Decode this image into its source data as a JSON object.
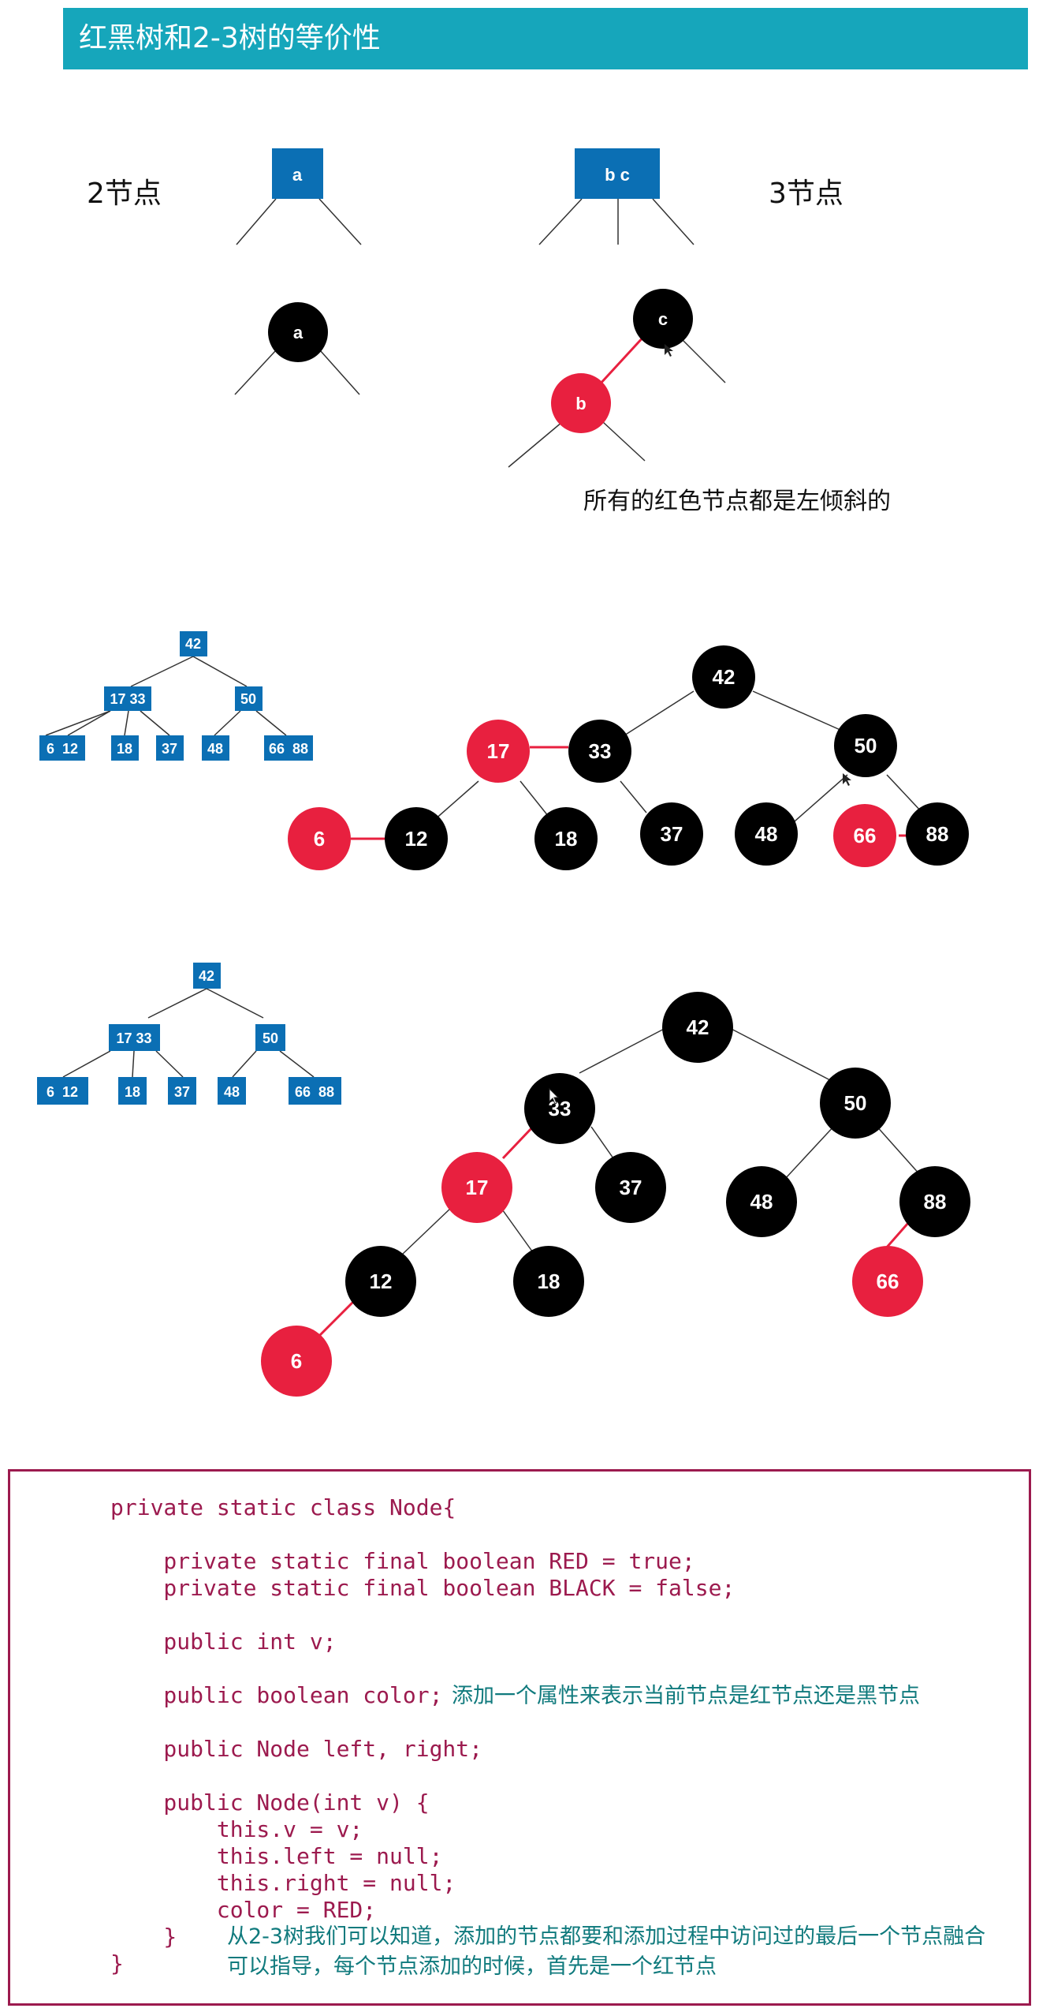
{
  "header": {
    "title": "红黑树和2-3树的等价性"
  },
  "section1": {
    "two_node_label": "2节点",
    "three_node_label": "3节点",
    "two_node": {
      "key": "a"
    },
    "three_node": {
      "keys": "b c"
    },
    "rb_two": {
      "key": "a"
    },
    "rb_three": {
      "black": "c",
      "red": "b"
    },
    "caption": "所有的红色节点都是左倾斜的"
  },
  "tree1": {
    "boxes": {
      "root": "42",
      "left": "17 33",
      "right": "50",
      "leaves": [
        "6  12",
        "18",
        "37",
        "48",
        "66  88"
      ]
    },
    "nodes": [
      {
        "id": "n42",
        "label": "42",
        "color": "black"
      },
      {
        "id": "n17",
        "label": "17",
        "color": "red"
      },
      {
        "id": "n33",
        "label": "33",
        "color": "black"
      },
      {
        "id": "n50",
        "label": "50",
        "color": "black"
      },
      {
        "id": "n6",
        "label": "6",
        "color": "red"
      },
      {
        "id": "n12",
        "label": "12",
        "color": "black"
      },
      {
        "id": "n18",
        "label": "18",
        "color": "black"
      },
      {
        "id": "n37",
        "label": "37",
        "color": "black"
      },
      {
        "id": "n48",
        "label": "48",
        "color": "black"
      },
      {
        "id": "n66",
        "label": "66",
        "color": "red"
      },
      {
        "id": "n88",
        "label": "88",
        "color": "black"
      }
    ]
  },
  "tree2": {
    "boxes": {
      "root": "42",
      "left": "17 33",
      "right": "50",
      "leaves": [
        "6  12",
        "18",
        "37",
        "48",
        "66  88"
      ]
    },
    "nodes": [
      {
        "id": "m42",
        "label": "42",
        "color": "black"
      },
      {
        "id": "m33",
        "label": "33",
        "color": "black"
      },
      {
        "id": "m50",
        "label": "50",
        "color": "black"
      },
      {
        "id": "m17",
        "label": "17",
        "color": "red"
      },
      {
        "id": "m37",
        "label": "37",
        "color": "black"
      },
      {
        "id": "m48",
        "label": "48",
        "color": "black"
      },
      {
        "id": "m88",
        "label": "88",
        "color": "black"
      },
      {
        "id": "m12",
        "label": "12",
        "color": "black"
      },
      {
        "id": "m18",
        "label": "18",
        "color": "black"
      },
      {
        "id": "m66",
        "label": "66",
        "color": "red"
      },
      {
        "id": "m6",
        "label": "6",
        "color": "red"
      }
    ]
  },
  "colors": {
    "header": "#16a6bb",
    "box": "#0b6fb4",
    "red": "#e8203f",
    "black": "#000000",
    "code": "#9c1a4e",
    "note": "#107a7d"
  },
  "code": {
    "lines": [
      "private static class Node{",
      "",
      "    private static final boolean RED = true;",
      "    private static final boolean BLACK = false;",
      "",
      "    public int v;",
      "",
      "    public boolean color;",
      "",
      "    public Node left, right;",
      "",
      "    public Node(int v) {",
      "        this.v = v;",
      "        this.left = null;",
      "        this.right = null;",
      "        color = RED;",
      "    }",
      "}"
    ],
    "note_color": "添加一个属性来表示当前节点是红节点还是黑节点",
    "note_add_line1": "从2-3树我们可以知道，添加的节点都要和添加过程中访问过的最后一个节点融合",
    "note_add_line2": "可以指导，每个节点添加的时候，首先是一个红节点"
  }
}
